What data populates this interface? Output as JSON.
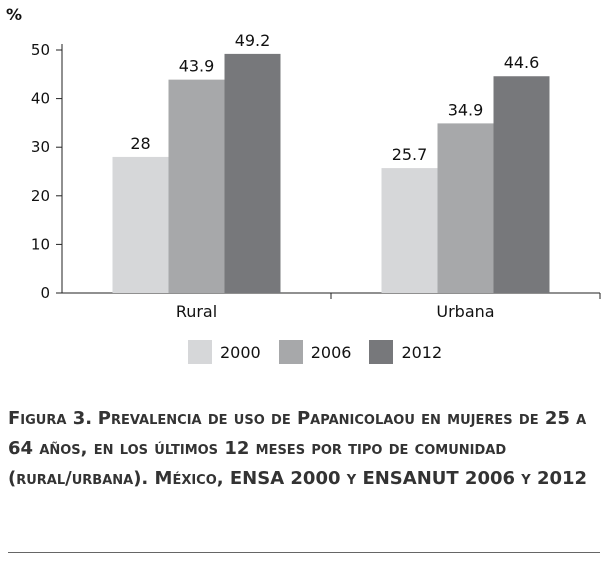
{
  "chart_data": {
    "type": "bar",
    "unit_label": "%",
    "categories": [
      "Rural",
      "Urbana"
    ],
    "series": [
      {
        "name": "2000",
        "values": [
          28,
          25.7
        ],
        "labels": [
          "28",
          "25.7"
        ],
        "color": "#d6d7d9"
      },
      {
        "name": "2006",
        "values": [
          43.9,
          34.9
        ],
        "labels": [
          "43.9",
          "34.9"
        ],
        "color": "#a7a8aa"
      },
      {
        "name": "2012",
        "values": [
          49.2,
          44.6
        ],
        "labels": [
          "49.2",
          "44.6"
        ],
        "color": "#77787b"
      }
    ],
    "ylim": [
      0,
      50
    ],
    "yticks": [
      0,
      10,
      20,
      30,
      40,
      50
    ],
    "legend_position": "bottom",
    "grid": false
  },
  "caption": {
    "label": "Figura 3.",
    "text": "Prevalencia de uso de Papanicolaou en mujeres de 25 a 64 años, en los últimos 12 meses por tipo de comunidad (rural/urbana). México, ENSA 2000 y ENSANUT 2006 y 2012"
  }
}
